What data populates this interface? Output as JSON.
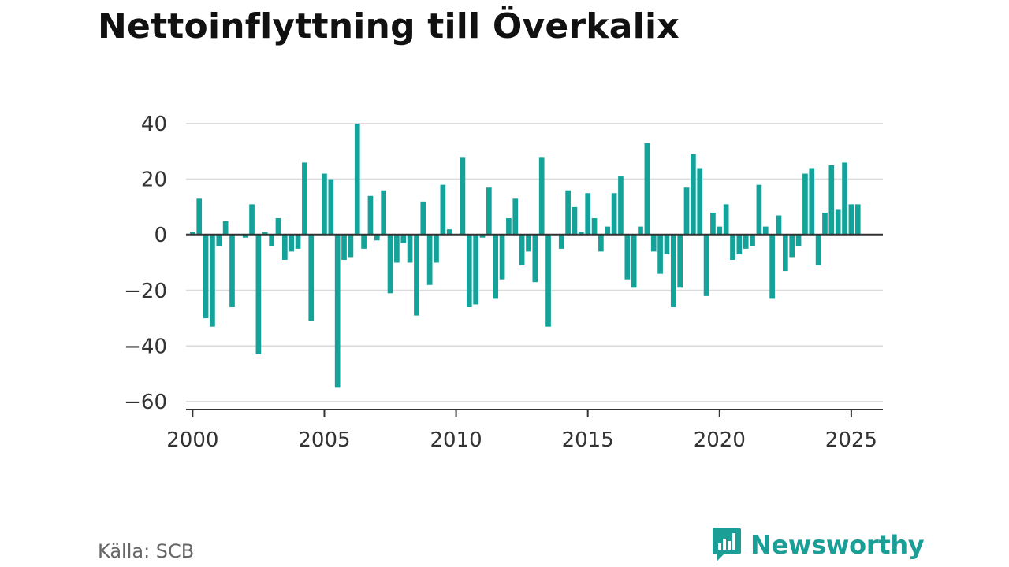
{
  "title": "Nettoinflyttning till Överkalix",
  "source": "Källa: SCB",
  "brand": {
    "name": "Newsworthy",
    "icon": "newsworthy-logo-icon"
  },
  "colors": {
    "bar": "#14a39a",
    "grid": "#dcdcdc",
    "axis": "#333333",
    "text": "#333333",
    "brand": "#1a9e96"
  },
  "chart_data": {
    "type": "bar",
    "title": "Nettoinflyttning till Överkalix",
    "xlabel": "",
    "ylabel": "",
    "ylim": [
      -60,
      40
    ],
    "xlim": [
      1999.75,
      2026.2
    ],
    "yticks": [
      40,
      20,
      0,
      -20,
      -40,
      -60
    ],
    "ytick_labels": [
      "40",
      "20",
      "0",
      "−20",
      "−40",
      "−60"
    ],
    "xticks": [
      2000,
      2005,
      2010,
      2015,
      2020,
      2025
    ],
    "xtick_labels": [
      "2000",
      "2005",
      "2010",
      "2015",
      "2020",
      "2025"
    ],
    "grid": true,
    "interval": "quarter",
    "start": "2000 Q1",
    "values": [
      1,
      13,
      -30,
      -33,
      -4,
      5,
      -26,
      0,
      -1,
      11,
      -43,
      1,
      -4,
      6,
      -9,
      -6,
      -5,
      26,
      -31,
      0,
      22,
      20,
      -55,
      -9,
      -8,
      40,
      -5,
      14,
      -2,
      16,
      -21,
      -10,
      -3,
      -10,
      -29,
      12,
      -18,
      -10,
      18,
      2,
      0,
      28,
      -26,
      -25,
      -1,
      17,
      -23,
      -16,
      6,
      13,
      -11,
      -6,
      -17,
      28,
      -33,
      0,
      -5,
      16,
      10,
      1,
      15,
      6,
      -6,
      3,
      15,
      21,
      -16,
      -19,
      3,
      33,
      -6,
      -14,
      -7,
      -26,
      -19,
      17,
      29,
      24,
      -22,
      8,
      3,
      11,
      -9,
      -7,
      -5,
      -4,
      18,
      3,
      -23,
      7,
      -13,
      -8,
      -4,
      22,
      24,
      -11,
      8,
      25,
      9,
      26,
      11,
      11
    ]
  }
}
